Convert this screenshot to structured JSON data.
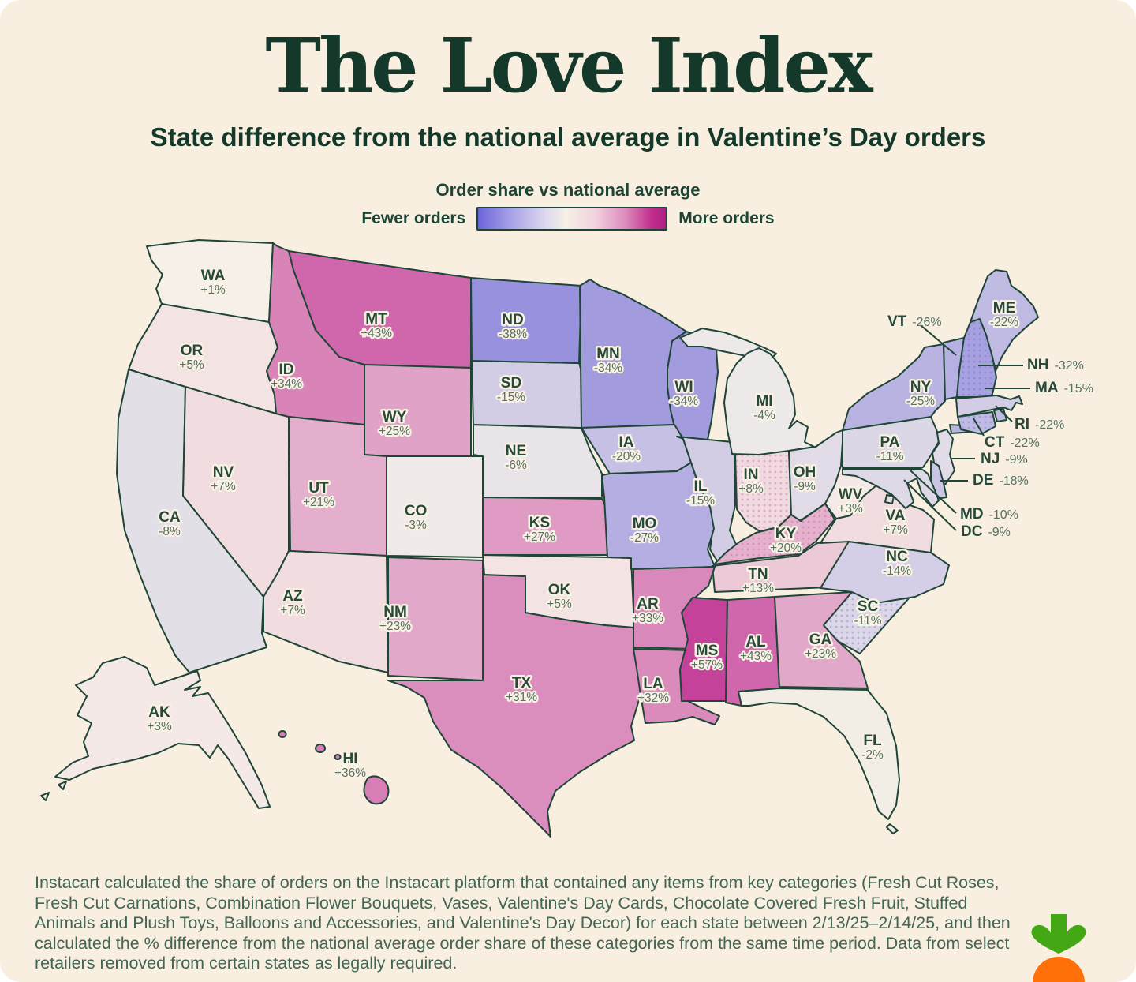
{
  "page": {
    "background": "#f8efe1",
    "ink": "#14392a",
    "border_color": "#1d4434"
  },
  "header": {
    "title": "The Love Index",
    "subtitle": "State difference from the national average in Valentine’s Day orders"
  },
  "legend": {
    "title": "Order share vs national average",
    "left_label": "Fewer orders",
    "right_label": "More orders",
    "gradient": [
      "#6c64d9 0%",
      "#a39ce6 16%",
      "#ddd8ee 36%",
      "#f6f0e6 47%",
      "#f2d3e0 62%",
      "#dd8fbe 78%",
      "#c2308f 92%",
      "#b01c86 100%"
    ]
  },
  "chart_data": {
    "type": "choropleth",
    "geography": "United States",
    "title": "The Love Index",
    "metric": "State difference from the national average in Valentine's Day orders (% order share vs national average)",
    "period": "2/13/25–2/14/25",
    "min_label": "Fewer orders",
    "max_label": "More orders",
    "states": [
      {
        "code": "WA",
        "value": 1,
        "label": "+1%",
        "fill": "#f6f0e9",
        "dotted": false
      },
      {
        "code": "OR",
        "value": 5,
        "label": "+5%",
        "fill": "#f3e3e3",
        "dotted": false
      },
      {
        "code": "CA",
        "value": -8,
        "label": "-8%",
        "fill": "#e3dfe7",
        "dotted": false
      },
      {
        "code": "NV",
        "value": 7,
        "label": "+7%",
        "fill": "#f1dce0",
        "dotted": false
      },
      {
        "code": "ID",
        "value": 34,
        "label": "+34%",
        "fill": "#d884b9",
        "dotted": false
      },
      {
        "code": "MT",
        "value": 43,
        "label": "+43%",
        "fill": "#d067ac",
        "dotted": false
      },
      {
        "code": "WY",
        "value": 25,
        "label": "+25%",
        "fill": "#e0a2c6",
        "dotted": false
      },
      {
        "code": "UT",
        "value": 21,
        "label": "+21%",
        "fill": "#e4afcc",
        "dotted": false
      },
      {
        "code": "CO",
        "value": -3,
        "label": "-3%",
        "fill": "#f0ebe9",
        "dotted": false
      },
      {
        "code": "AZ",
        "value": 7,
        "label": "+7%",
        "fill": "#f1dce0",
        "dotted": false
      },
      {
        "code": "NM",
        "value": 23,
        "label": "+23%",
        "fill": "#e2a8c9",
        "dotted": false
      },
      {
        "code": "TX",
        "value": 31,
        "label": "+31%",
        "fill": "#db8ebe",
        "dotted": false
      },
      {
        "code": "OK",
        "value": 5,
        "label": "+5%",
        "fill": "#f3e3e3",
        "dotted": false
      },
      {
        "code": "KS",
        "value": 27,
        "label": "+27%",
        "fill": "#df9bc3",
        "dotted": false
      },
      {
        "code": "NE",
        "value": -6,
        "label": "-6%",
        "fill": "#e8e4e8",
        "dotted": false
      },
      {
        "code": "SD",
        "value": -15,
        "label": "-15%",
        "fill": "#d2cde5",
        "dotted": false
      },
      {
        "code": "ND",
        "value": -38,
        "label": "-38%",
        "fill": "#9892de",
        "dotted": false
      },
      {
        "code": "MN",
        "value": -34,
        "label": "-34%",
        "fill": "#a29cdf",
        "dotted": false
      },
      {
        "code": "WI",
        "value": -34,
        "label": "-34%",
        "fill": "#a29cdf",
        "dotted": false
      },
      {
        "code": "IA",
        "value": -20,
        "label": "-20%",
        "fill": "#c5c0e4",
        "dotted": false
      },
      {
        "code": "IL",
        "value": -15,
        "label": "-15%",
        "fill": "#d2cde5",
        "dotted": false
      },
      {
        "code": "MO",
        "value": -27,
        "label": "-27%",
        "fill": "#b4aee2",
        "dotted": false
      },
      {
        "code": "IN",
        "value": 8,
        "label": "+8%",
        "fill": "#f0d9df",
        "dotted": true
      },
      {
        "code": "MI",
        "value": -4,
        "label": "-4%",
        "fill": "#ede9e9",
        "dotted": false
      },
      {
        "code": "OH",
        "value": -9,
        "label": "-9%",
        "fill": "#e1dce7",
        "dotted": false
      },
      {
        "code": "KY",
        "value": 20,
        "label": "+20%",
        "fill": "#e5b2cd",
        "dotted": true
      },
      {
        "code": "TN",
        "value": 13,
        "label": "+13%",
        "fill": "#ebc9d7",
        "dotted": false
      },
      {
        "code": "AR",
        "value": 33,
        "label": "+33%",
        "fill": "#d988bb",
        "dotted": false
      },
      {
        "code": "LA",
        "value": 32,
        "label": "+32%",
        "fill": "#da8bbc",
        "dotted": false
      },
      {
        "code": "MS",
        "value": 57,
        "label": "+57%",
        "fill": "#c5429b",
        "dotted": false
      },
      {
        "code": "AL",
        "value": 43,
        "label": "+43%",
        "fill": "#d067ac",
        "dotted": false
      },
      {
        "code": "GA",
        "value": 23,
        "label": "+23%",
        "fill": "#e2a8c9",
        "dotted": false
      },
      {
        "code": "FL",
        "value": -2,
        "label": "-2%",
        "fill": "#f2eee6",
        "dotted": false
      },
      {
        "code": "SC",
        "value": -11,
        "label": "-11%",
        "fill": "#dcd7e7",
        "dotted": true
      },
      {
        "code": "NC",
        "value": -14,
        "label": "-14%",
        "fill": "#d4cfe6",
        "dotted": false
      },
      {
        "code": "VA",
        "value": 7,
        "label": "+7%",
        "fill": "#f1dce0",
        "dotted": false
      },
      {
        "code": "WV",
        "value": 3,
        "label": "+3%",
        "fill": "#f4e9e6",
        "dotted": false
      },
      {
        "code": "PA",
        "value": -11,
        "label": "-11%",
        "fill": "#dcd7e7",
        "dotted": false
      },
      {
        "code": "NY",
        "value": -25,
        "label": "-25%",
        "fill": "#b9b3e2",
        "dotted": false
      },
      {
        "code": "VT",
        "value": -26,
        "label": "-26%",
        "fill": "#b6b1e2",
        "dotted": false,
        "outside": true
      },
      {
        "code": "NH",
        "value": -32,
        "label": "-32%",
        "fill": "#a7a1e0",
        "dotted": true,
        "outside": true
      },
      {
        "code": "ME",
        "value": -22,
        "label": "-22%",
        "fill": "#c0bbe3",
        "dotted": false
      },
      {
        "code": "MA",
        "value": -15,
        "label": "-15%",
        "fill": "#d2cde5",
        "dotted": false,
        "outside": true
      },
      {
        "code": "RI",
        "value": -22,
        "label": "-22%",
        "fill": "#c0bbe3",
        "dotted": false,
        "outside": true
      },
      {
        "code": "CT",
        "value": -22,
        "label": "-22%",
        "fill": "#c0bbe3",
        "dotted": true,
        "outside": true
      },
      {
        "code": "NJ",
        "value": -9,
        "label": "-9%",
        "fill": "#e1dce7",
        "dotted": false,
        "outside": true
      },
      {
        "code": "DE",
        "value": -18,
        "label": "-18%",
        "fill": "#cac5e4",
        "dotted": false,
        "outside": true
      },
      {
        "code": "MD",
        "value": -10,
        "label": "-10%",
        "fill": "#ded9e7",
        "dotted": false,
        "outside": true
      },
      {
        "code": "DC",
        "value": -9,
        "label": "-9%",
        "fill": "#e1dce7",
        "dotted": false,
        "outside": true
      },
      {
        "code": "AK",
        "value": 3,
        "label": "+3%",
        "fill": "#f4e9e6",
        "dotted": false
      },
      {
        "code": "HI",
        "value": 36,
        "label": "+36%",
        "fill": "#d77eb6",
        "dotted": false
      }
    ]
  },
  "footer": {
    "text": "Instacart calculated the share of orders on the Instacart platform that contained any items from key categories (Fresh Cut Roses, Fresh Cut Carnations, Combination Flower Bouquets, Vases, Valentine's Day Cards, Chocolate Covered Fresh Fruit, Stuffed Animals and Plush Toys, Balloons and Accessories, and Valentine's Day Decor) for each state between 2/13/25–2/14/25, and then calculated the % difference from the national average order share of these categories from the same time period. Data from select retailers removed from certain states as legally required."
  },
  "logo": {
    "name": "instacart-carrot",
    "leaf_color": "#43a813",
    "carrot_color": "#ff7009"
  }
}
